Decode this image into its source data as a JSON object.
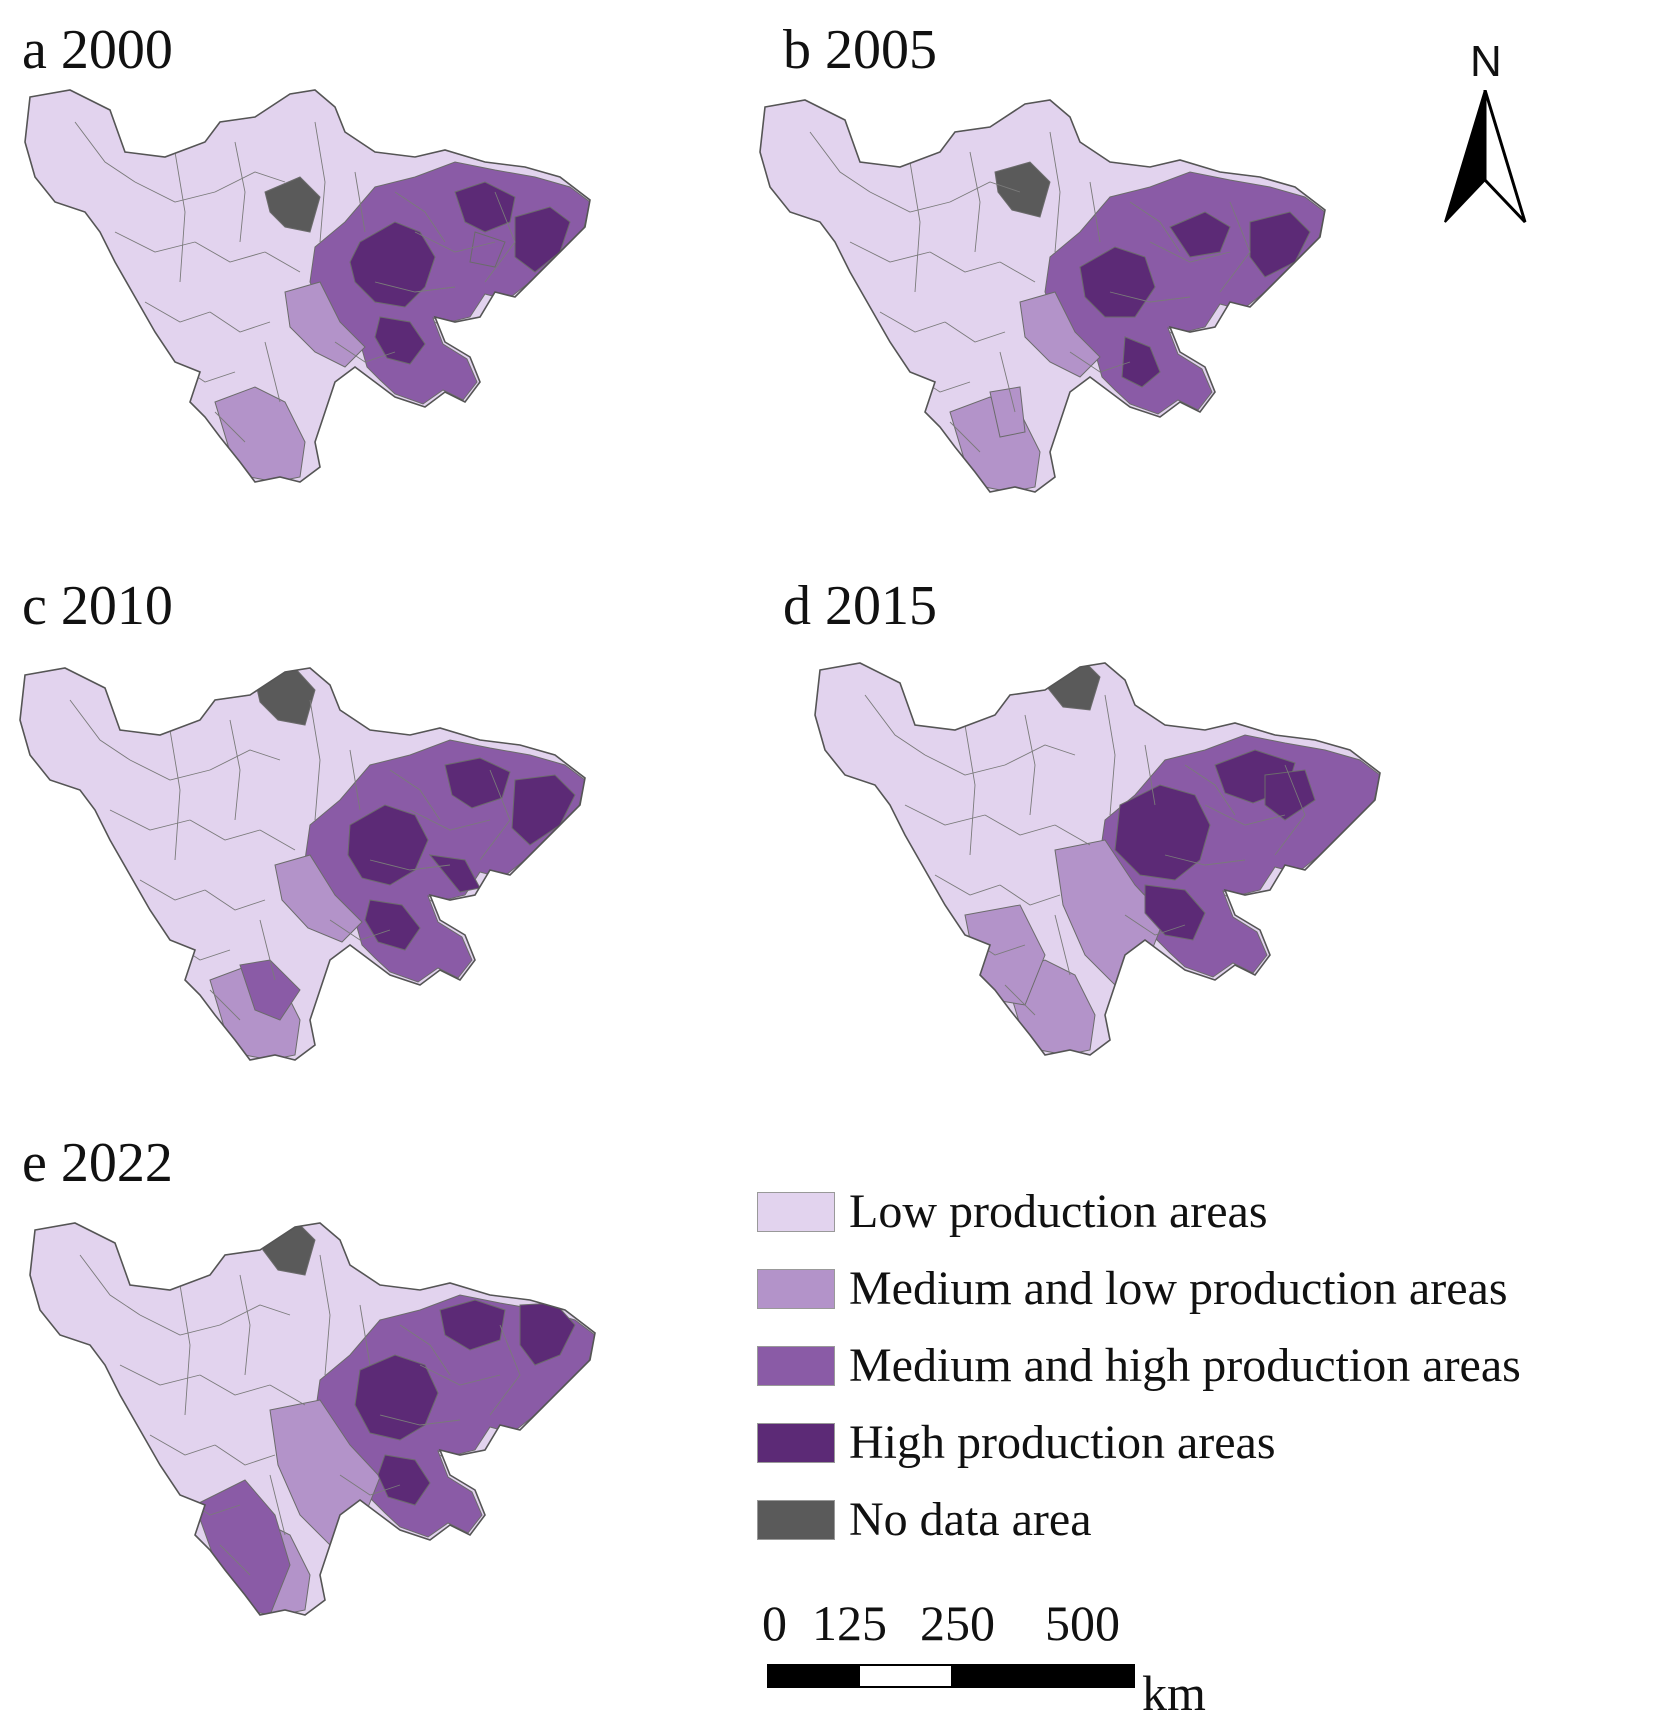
{
  "panels": [
    {
      "id": "a",
      "title": "a 2000"
    },
    {
      "id": "b",
      "title": "b 2005"
    },
    {
      "id": "c",
      "title": "c 2010"
    },
    {
      "id": "d",
      "title": "d 2015"
    },
    {
      "id": "e",
      "title": "e 2022"
    }
  ],
  "north_arrow": {
    "label": "N"
  },
  "legend": {
    "items": [
      {
        "label": "Low production areas",
        "color": "#e2d3ee"
      },
      {
        "label": "Medium and low production areas",
        "color": "#b393c9"
      },
      {
        "label": "Medium and high production areas",
        "color": "#8a5ba6"
      },
      {
        "label": "High production areas",
        "color": "#5c2a76"
      },
      {
        "label": "No data area",
        "color": "#5a5a5a"
      }
    ]
  },
  "scale_bar": {
    "ticks": [
      "0",
      "125",
      "250",
      "500"
    ],
    "unit": "km"
  }
}
